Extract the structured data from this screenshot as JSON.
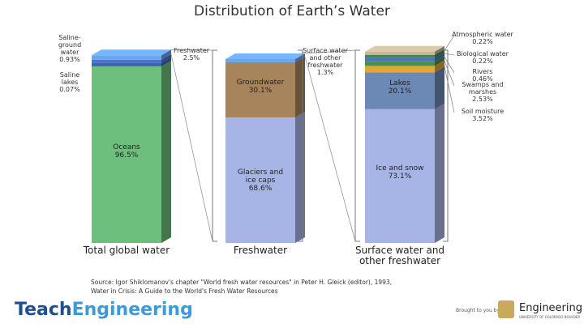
{
  "chart_data": {
    "type": "stacked_bar",
    "title": "Distribution of Earth’s Water",
    "bars": [
      {
        "name": "Total global water",
        "segments": [
          {
            "name": "Oceans",
            "value": 96.5,
            "value_label": "96.5%",
            "color": "#6cbf7c",
            "label_pos": "inside"
          },
          {
            "name": "Saline lakes",
            "value": 0.07,
            "value_label": "0.07%",
            "color": "#3a62b8",
            "label_pos": "left"
          },
          {
            "name": "Saline-ground water",
            "value": 0.93,
            "value_label": "0.93%",
            "color": "#4a72c8",
            "label_pos": "left"
          },
          {
            "name": "Freshwater",
            "value": 2.5,
            "value_label": "2.5%",
            "color": "#6aa6ec",
            "label_pos": "right"
          }
        ]
      },
      {
        "name": "Freshwater",
        "segments": [
          {
            "name": "Glaciers and ice caps",
            "value": 68.6,
            "value_label": "68.6%",
            "color": "#a6b5e6",
            "label_pos": "inside"
          },
          {
            "name": "Groundwater",
            "value": 30.1,
            "value_label": "30.1%",
            "color": "#a8845c",
            "label_pos": "inside"
          },
          {
            "name": "Surface water and other freshwater",
            "value": 1.3,
            "value_label": "1.3%",
            "color": "#6aa6ec",
            "label_pos": "right"
          }
        ]
      },
      {
        "name": "Surface water and other freshwater",
        "segments": [
          {
            "name": "Ice and snow",
            "value": 73.1,
            "value_label": "73.1%",
            "color": "#a6b5e6",
            "label_pos": "inside"
          },
          {
            "name": "Lakes",
            "value": 20.1,
            "value_label": "20.1%",
            "color": "#6c88b4",
            "label_pos": "inside"
          },
          {
            "name": "Soil moisture",
            "value": 3.52,
            "value_label": "3.52%",
            "color": "#e2a832",
            "label_pos": "right"
          },
          {
            "name": "Swamps and marshes",
            "value": 2.53,
            "value_label": "2.53%",
            "color": "#4c8e52",
            "label_pos": "right"
          },
          {
            "name": "Rivers",
            "value": 0.46,
            "value_label": "0.46%",
            "color": "#4a72c8",
            "label_pos": "right"
          },
          {
            "name": "Biological water",
            "value": 0.22,
            "value_label": "0.22%",
            "color": "#3f8a52",
            "label_pos": "right"
          },
          {
            "name": "Atmospheric water",
            "value": 0.22,
            "value_label": "0.22%",
            "color": "#c8b89a",
            "label_pos": "right"
          }
        ]
      }
    ],
    "source": "Source: Igor Shiklomanov's chapter \"World fresh water resources\" in Peter H. Gleick (editor), 1993, Water in Crisis: A Guide to the World's Fresh Water Resources"
  },
  "footer": {
    "logo_left": "Teach",
    "logo_right": "Engineering",
    "brought": "Brought to you by",
    "partner": "Engineering",
    "partner_sub": "UNIVERSITY OF COLORADO BOULDER"
  }
}
